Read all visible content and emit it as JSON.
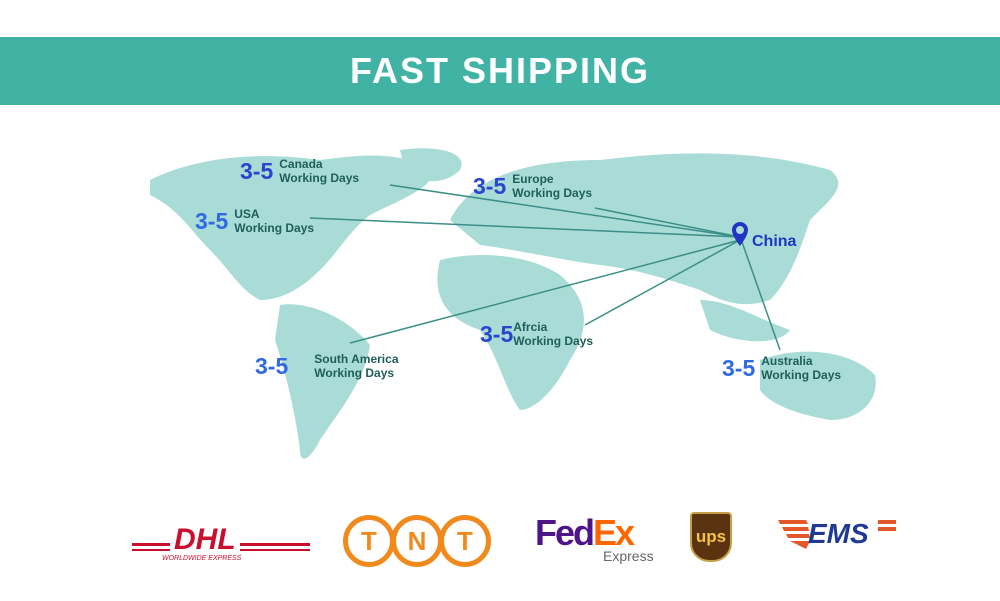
{
  "banner": {
    "title": "FAST SHIPPING"
  },
  "origin": {
    "name": "China",
    "icon": "location-pin-icon"
  },
  "destinations": [
    {
      "days": "3-5",
      "region": "Canada",
      "label": "Working Days"
    },
    {
      "days": "3-5",
      "region": "USA",
      "label": "Working Days"
    },
    {
      "days": "3-5",
      "region": "Europe",
      "label": "Working Days"
    },
    {
      "days": "3-5",
      "region": "Afrcia",
      "label": "Working Days"
    },
    {
      "days": "3-5",
      "region": "South America",
      "label": "Working Days"
    },
    {
      "days": "3-5",
      "region": "Australia",
      "label": "Working Days"
    }
  ],
  "carriers": {
    "dhl": "DHL",
    "dhl_sub": "WORLDWIDE EXPRESS",
    "tnt": [
      "T",
      "N",
      "T"
    ],
    "fedex_a": "Fed",
    "fedex_b": "Ex",
    "fedex_sub": "Express",
    "ups": "ups",
    "ems": "EMS"
  },
  "colors": {
    "banner": "#41b3a5",
    "map": "#a9dcd6",
    "arrow": "#3a8f88",
    "days": "#2b45d0"
  }
}
